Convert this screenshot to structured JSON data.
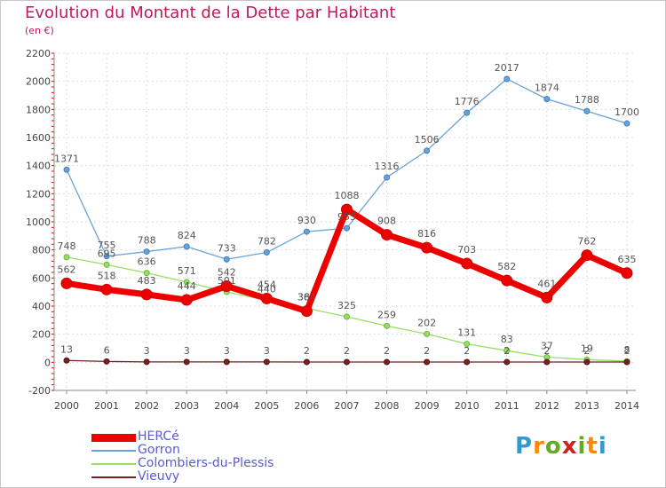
{
  "chart_data": {
    "type": "line",
    "title": "Evolution du Montant de la Dette par Habitant",
    "subtitle": "(en €)",
    "x": [
      "2000",
      "2001",
      "2002",
      "2003",
      "2004",
      "2005",
      "2006",
      "2007",
      "2008",
      "2009",
      "2010",
      "2011",
      "2012",
      "2013",
      "2014"
    ],
    "ylim": [
      -200,
      2200
    ],
    "yticks": [
      -200,
      0,
      200,
      400,
      600,
      800,
      1000,
      1200,
      1400,
      1600,
      1800,
      2000,
      2200
    ],
    "grid": true,
    "legend": "bottom-left",
    "series": [
      {
        "name": "HERCé",
        "color": "#ee0000",
        "values": [
          562,
          518,
          483,
          444,
          542,
          454,
          364,
          1088,
          908,
          816,
          703,
          582,
          461,
          762,
          635
        ]
      },
      {
        "name": "Gorron",
        "color": "#6ba3d6",
        "values": [
          1371,
          755,
          788,
          824,
          733,
          782,
          930,
          955,
          1316,
          1506,
          1776,
          2017,
          1874,
          1788,
          1700
        ]
      },
      {
        "name": "Colombiers-du-Plessis",
        "color": "#99dd66",
        "values": [
          748,
          695,
          636,
          571,
          501,
          440,
          384,
          325,
          259,
          202,
          131,
          83,
          37,
          19,
          8
        ]
      },
      {
        "name": "Vieuvy",
        "color": "#772222",
        "values": [
          13,
          6,
          3,
          3,
          3,
          3,
          2,
          2,
          2,
          2,
          2,
          2,
          2,
          2,
          2
        ]
      }
    ]
  },
  "brand": {
    "text": "Proxiti",
    "letters": [
      "P",
      "r",
      "o",
      "x",
      "i",
      "t",
      "i"
    ],
    "colors": [
      "#3399cc",
      "#ff8800",
      "#66aa22",
      "#cc2222",
      "#66aa22",
      "#ff8800",
      "#3399cc"
    ]
  }
}
